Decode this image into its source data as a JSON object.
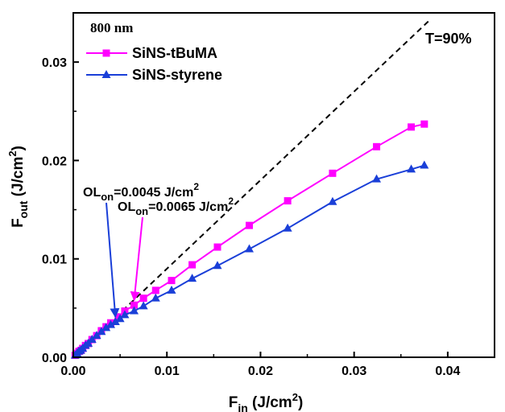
{
  "chart_data": {
    "type": "line",
    "xlabel": "F",
    "xlabel_sub": "in",
    "xlabel_unit": " (J/cm",
    "xlabel_sup": "2",
    "xlabel_close": ")",
    "ylabel": "F",
    "ylabel_sub": "out",
    "ylabel_unit": " (J/cm",
    "ylabel_sup": "2",
    "ylabel_close": ")",
    "xlim": [
      0,
      0.045
    ],
    "ylim": [
      0,
      0.035
    ],
    "xticks": [
      0.0,
      0.01,
      0.02,
      0.03,
      0.04
    ],
    "xtick_labels": [
      "0.00",
      "0.01",
      "0.02",
      "0.03",
      "0.04"
    ],
    "yticks": [
      0.0,
      0.01,
      0.02,
      0.03
    ],
    "ytick_labels": [
      "0.00",
      "0.01",
      "0.02",
      "0.03"
    ],
    "header": "800 nm",
    "transmittance_label": "T=90%",
    "reference_line": {
      "slope": 0.9,
      "style": "dashed",
      "color": "#000000"
    },
    "legend_position": "top-left",
    "series": [
      {
        "name": "SiNS-tBuMA",
        "color": "#ff00ff",
        "marker": "square",
        "x": [
          0.0002,
          0.0004,
          0.0006,
          0.0008,
          0.001,
          0.0013,
          0.0016,
          0.002,
          0.0025,
          0.003,
          0.0035,
          0.004,
          0.0048,
          0.0055,
          0.0065,
          0.0075,
          0.0088,
          0.0105,
          0.0127,
          0.0154,
          0.0188,
          0.0229,
          0.0277,
          0.0324,
          0.0361,
          0.0375
        ],
        "y": [
          0.0002,
          0.0004,
          0.0006,
          0.0007,
          0.0009,
          0.0012,
          0.0014,
          0.0018,
          0.0022,
          0.0027,
          0.0031,
          0.0035,
          0.0041,
          0.0047,
          0.0053,
          0.006,
          0.0068,
          0.0078,
          0.0094,
          0.0112,
          0.0134,
          0.0159,
          0.0187,
          0.0214,
          0.0234,
          0.0237
        ]
      },
      {
        "name": "SiNS-styrene",
        "color": "#1a3fd8",
        "marker": "triangle",
        "x": [
          0.0002,
          0.0004,
          0.0006,
          0.0008,
          0.001,
          0.0013,
          0.0016,
          0.002,
          0.0025,
          0.003,
          0.0035,
          0.004,
          0.0045,
          0.005,
          0.0055,
          0.0065,
          0.0075,
          0.0088,
          0.0105,
          0.0127,
          0.0154,
          0.0188,
          0.0229,
          0.0277,
          0.0324,
          0.0361,
          0.0375
        ],
        "y": [
          0.0002,
          0.0004,
          0.0006,
          0.0007,
          0.0009,
          0.0012,
          0.0014,
          0.0018,
          0.0022,
          0.0026,
          0.003,
          0.0033,
          0.0036,
          0.0039,
          0.0043,
          0.0047,
          0.0052,
          0.006,
          0.0068,
          0.008,
          0.0093,
          0.011,
          0.0131,
          0.0158,
          0.0181,
          0.0191,
          0.0195
        ]
      }
    ],
    "annotations": [
      {
        "prefix": "OL",
        "sub": "on",
        "value": "=0.0045 J/cm",
        "sup": "2",
        "color": "#1a3fd8",
        "point": [
          0.0045,
          0.0036
        ]
      },
      {
        "prefix": "OL",
        "sub": "on",
        "value": "=0.0065 J/cm",
        "sup": "2",
        "color": "#ff00ff",
        "point": [
          0.0065,
          0.0053
        ]
      }
    ]
  }
}
